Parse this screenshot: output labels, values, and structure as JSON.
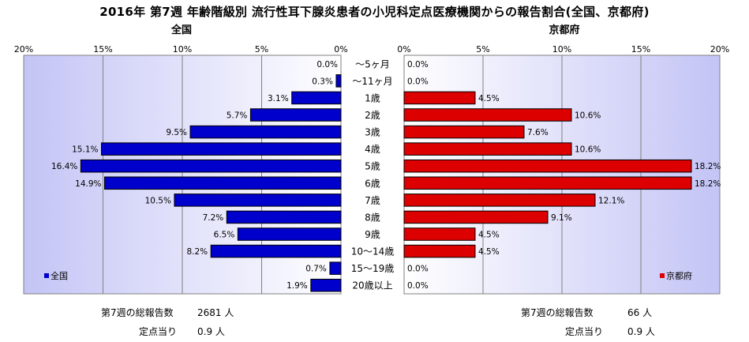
{
  "chart_data": {
    "type": "bar",
    "title": "2016年 第7週 年齢階級別 流行性耳下腺炎患者の小児科定点医療機関からの報告割合(全国、京都府)",
    "categories": [
      "～5ヶ月",
      "～11ヶ月",
      "1歳",
      "2歳",
      "3歳",
      "4歳",
      "5歳",
      "6歳",
      "7歳",
      "8歳",
      "9歳",
      "10～14歳",
      "15～19歳",
      "20歳以上"
    ],
    "series": [
      {
        "name": "全国",
        "color": "#0000cc",
        "values": [
          0.0,
          0.3,
          3.1,
          5.7,
          9.5,
          15.1,
          16.4,
          14.9,
          10.5,
          7.2,
          6.5,
          8.2,
          0.7,
          1.9
        ],
        "labels": [
          "0.0%",
          "0.3%",
          "3.1%",
          "5.7%",
          "9.5%",
          "15.1%",
          "16.4%",
          "14.9%",
          "10.5%",
          "7.2%",
          "6.5%",
          "8.2%",
          "0.7%",
          "1.9%"
        ]
      },
      {
        "name": "京都府",
        "color": "#dd0000",
        "values": [
          0.0,
          0.0,
          4.5,
          10.6,
          7.6,
          10.6,
          18.2,
          18.2,
          12.1,
          9.1,
          4.5,
          4.5,
          0.0,
          0.0
        ],
        "labels": [
          "0.0%",
          "0.0%",
          "4.5%",
          "10.6%",
          "7.6%",
          "10.6%",
          "18.2%",
          "18.2%",
          "12.1%",
          "9.1%",
          "4.5%",
          "4.5%",
          "0.0%",
          "0.0%"
        ]
      }
    ],
    "panel_titles": {
      "left": "全国",
      "right": "京都府"
    },
    "xlim": [
      0,
      20
    ],
    "ticks": [
      {
        "v": 0,
        "label": "0%"
      },
      {
        "v": 5,
        "label": "5%"
      },
      {
        "v": 10,
        "label": "10%"
      },
      {
        "v": 15,
        "label": "15%"
      },
      {
        "v": 20,
        "label": "20%"
      }
    ],
    "legend_position": "bottom-left / bottom-right",
    "plot_background": "#c8c8f8",
    "gridlines": true
  },
  "footer": {
    "left_total_label": "第7週の総報告数",
    "left_total_value": "2681 人",
    "left_per_label": "定点当り",
    "left_per_value": "0.9 人",
    "right_total_label": "第7週の総報告数",
    "right_total_value": "66 人",
    "right_per_label": "定点当り",
    "right_per_value": "0.9 人"
  }
}
